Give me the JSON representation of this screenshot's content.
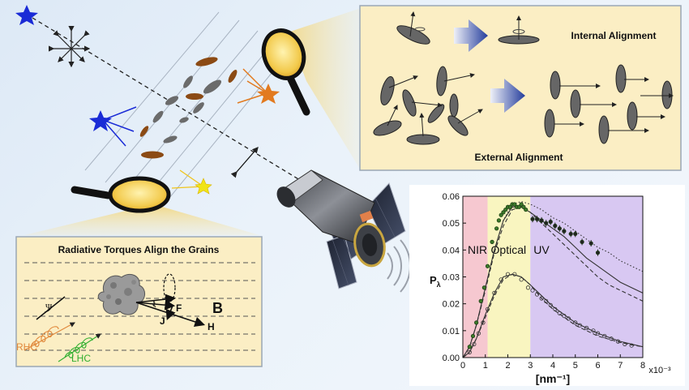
{
  "internal_alignment": {
    "title": "Internal Alignment"
  },
  "external_alignment": {
    "title": "External Alignment"
  },
  "rat_panel": {
    "title": "Radiative Torques Align the Grains",
    "labels": {
      "psi": "Ψ",
      "xi": "ξ",
      "F": "F",
      "J": "J",
      "H": "H",
      "B": "B",
      "RHC": "RHC",
      "LHC": "LHC"
    }
  },
  "colors": {
    "panel_bg": "#fbeec4",
    "panel_border": "#9aa7b5",
    "blue_star": "#1a2bd6",
    "orange_star": "#e27a1f",
    "yellow_star": "#f0e418",
    "grain_orange": "#8b4a14",
    "grain_grey": "#6b6b6b"
  },
  "chart_data": {
    "type": "scatter",
    "ylabel": "P",
    "ylabel_sub": "λ",
    "xlabel": "[nm⁻¹]",
    "x_multiplier": "x10⁻³",
    "xlim": [
      0,
      8
    ],
    "ylim": [
      0,
      0.06
    ],
    "x_ticks": [
      "0",
      "1",
      "2",
      "3",
      "4",
      "5",
      "6",
      "7",
      "8"
    ],
    "y_ticks": [
      "0.00",
      "0.01",
      "0.02",
      "0.03",
      "0.04",
      "0.05",
      "0.06"
    ],
    "bands": [
      {
        "label": "NIR",
        "from": 0,
        "to": 1.1,
        "color": "#f6c8d0"
      },
      {
        "label": "Optical",
        "from": 1.1,
        "to": 3.0,
        "color": "#f9f5c0"
      },
      {
        "label": "UV",
        "from": 3.0,
        "to": 8,
        "color": "#d8c8f2"
      }
    ],
    "series": [
      {
        "marker": "filled",
        "x": [
          0.3,
          0.45,
          0.6,
          0.8,
          0.95,
          1.1,
          1.3,
          1.5,
          1.6,
          1.7,
          1.8,
          1.9,
          2.0,
          2.1,
          2.2,
          2.3,
          2.4,
          2.5,
          2.6,
          2.7,
          2.8,
          3.1,
          3.3,
          3.5,
          3.7,
          3.9,
          4.1,
          4.3,
          4.5,
          4.8,
          5.0,
          5.3,
          5.7,
          6.0
        ],
        "y": [
          0.004,
          0.008,
          0.013,
          0.021,
          0.026,
          0.034,
          0.043,
          0.048,
          0.051,
          0.053,
          0.054,
          0.055,
          0.056,
          0.056,
          0.057,
          0.057,
          0.056,
          0.056,
          0.057,
          0.056,
          0.055,
          0.0515,
          0.0515,
          0.051,
          0.05,
          0.0505,
          0.049,
          0.048,
          0.047,
          0.046,
          0.046,
          0.043,
          0.0425,
          0.039
        ]
      },
      {
        "marker": "open",
        "x": [
          0.3,
          0.5,
          0.7,
          0.9,
          1.1,
          1.4,
          1.7,
          2.0,
          2.3,
          2.6,
          2.9,
          3.1,
          3.3,
          3.5,
          3.7,
          3.9,
          4.1,
          4.3,
          4.5,
          4.7,
          5.0,
          5.2,
          5.5,
          5.8,
          6.0,
          6.3,
          6.6,
          6.9,
          7.2,
          7.5
        ],
        "y": [
          0.002,
          0.005,
          0.009,
          0.013,
          0.018,
          0.024,
          0.029,
          0.031,
          0.031,
          0.029,
          0.026,
          0.025,
          0.0235,
          0.022,
          0.021,
          0.0195,
          0.018,
          0.0165,
          0.0155,
          0.0145,
          0.013,
          0.012,
          0.011,
          0.01,
          0.009,
          0.008,
          0.007,
          0.006,
          0.005,
          0.0045
        ]
      }
    ],
    "fit_curves": [
      {
        "style": "solid",
        "x": [
          0,
          0.3,
          0.6,
          1,
          1.4,
          1.8,
          2.2,
          2.6,
          3,
          3.5,
          4,
          4.5,
          5,
          5.5,
          6,
          6.5,
          7,
          7.5,
          8
        ],
        "y": [
          0,
          0.004,
          0.012,
          0.026,
          0.04,
          0.051,
          0.056,
          0.056,
          0.054,
          0.051,
          0.048,
          0.045,
          0.041,
          0.037,
          0.034,
          0.031,
          0.028,
          0.026,
          0.024
        ]
      },
      {
        "style": "dashed",
        "x": [
          0,
          0.3,
          0.6,
          1,
          1.4,
          1.8,
          2.2,
          2.6,
          3,
          3.5,
          4,
          4.5,
          5,
          5.5,
          6,
          6.5,
          7,
          7.5,
          8
        ],
        "y": [
          0,
          0.004,
          0.012,
          0.025,
          0.039,
          0.049,
          0.055,
          0.056,
          0.054,
          0.05,
          0.046,
          0.042,
          0.038,
          0.034,
          0.03,
          0.027,
          0.025,
          0.023,
          0.021
        ]
      },
      {
        "style": "dotted",
        "x": [
          0,
          0.3,
          0.6,
          1,
          1.4,
          1.8,
          2.2,
          2.6,
          3,
          3.5,
          4,
          4.5,
          5,
          5.5,
          6,
          6.5,
          7,
          7.5,
          8
        ],
        "y": [
          0,
          0.004,
          0.012,
          0.026,
          0.04,
          0.051,
          0.057,
          0.058,
          0.057,
          0.055,
          0.052,
          0.05,
          0.047,
          0.044,
          0.041,
          0.039,
          0.036,
          0.034,
          0.032
        ]
      },
      {
        "style": "solid",
        "x": [
          0,
          0.3,
          0.6,
          1,
          1.4,
          1.8,
          2.2,
          2.6,
          3,
          3.5,
          4,
          4.5,
          5,
          5.5,
          6,
          6.5,
          7,
          7.5,
          8
        ],
        "y": [
          0,
          0.002,
          0.007,
          0.016,
          0.024,
          0.03,
          0.031,
          0.03,
          0.027,
          0.023,
          0.019,
          0.016,
          0.013,
          0.011,
          0.009,
          0.0075,
          0.006,
          0.005,
          0.004
        ]
      },
      {
        "style": "dashed",
        "x": [
          0,
          0.3,
          0.6,
          1,
          1.4,
          1.8,
          2.2,
          2.6,
          3,
          3.5,
          4,
          4.5,
          5,
          5.5,
          6,
          6.5,
          7,
          7.5,
          8
        ],
        "y": [
          0,
          0.002,
          0.007,
          0.015,
          0.023,
          0.029,
          0.031,
          0.03,
          0.027,
          0.022,
          0.018,
          0.015,
          0.012,
          0.01,
          0.008,
          0.0068,
          0.0056,
          0.0047,
          0.004
        ]
      }
    ]
  }
}
